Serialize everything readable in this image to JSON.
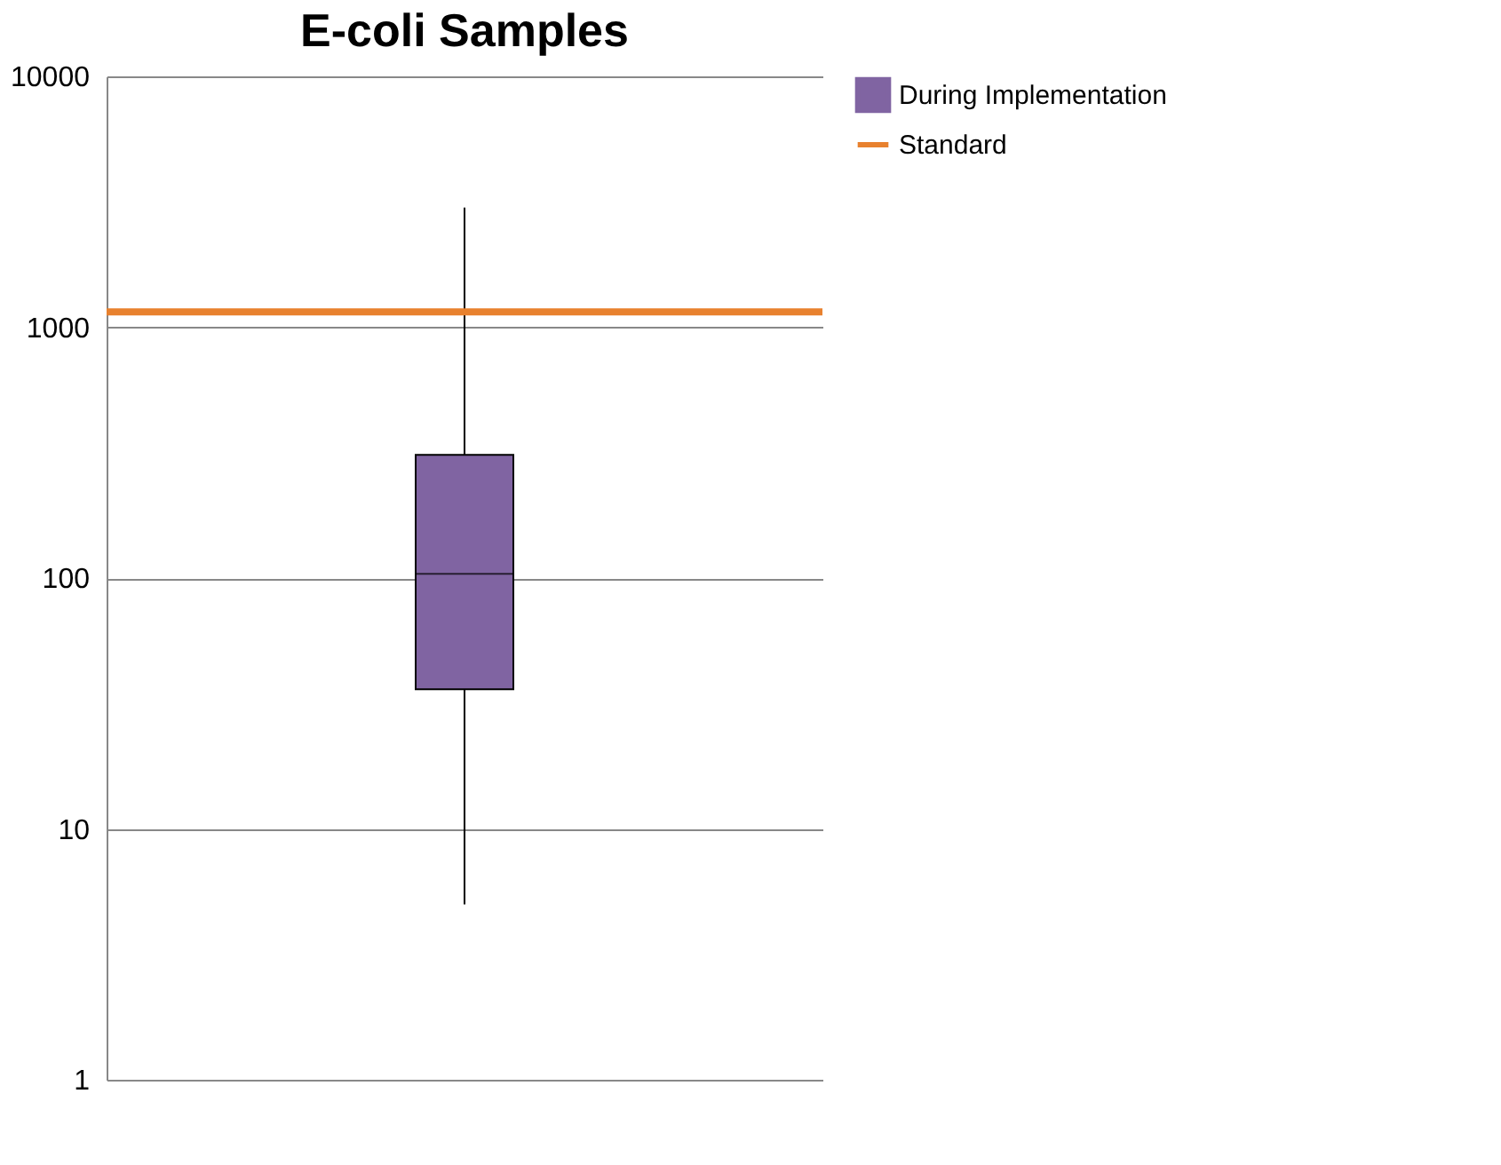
{
  "chart_data": {
    "type": "box",
    "title": "E-coli Samples",
    "categories": [
      null
    ],
    "series": [
      {
        "name": "During Implementation",
        "color": "#8064a2",
        "boxes": [
          {
            "low": 5,
            "q1": 36,
            "median": 104,
            "q3": 310,
            "high": 3000
          }
        ]
      }
    ],
    "ref_lines": [
      {
        "axis": "y",
        "value": 1150,
        "label": "Standard",
        "color": "#e8812e"
      }
    ],
    "log": true,
    "ylim": [
      1,
      10000
    ],
    "yticks": [
      1,
      10,
      100,
      1000,
      10000
    ],
    "grid": "y",
    "legend": "right"
  }
}
